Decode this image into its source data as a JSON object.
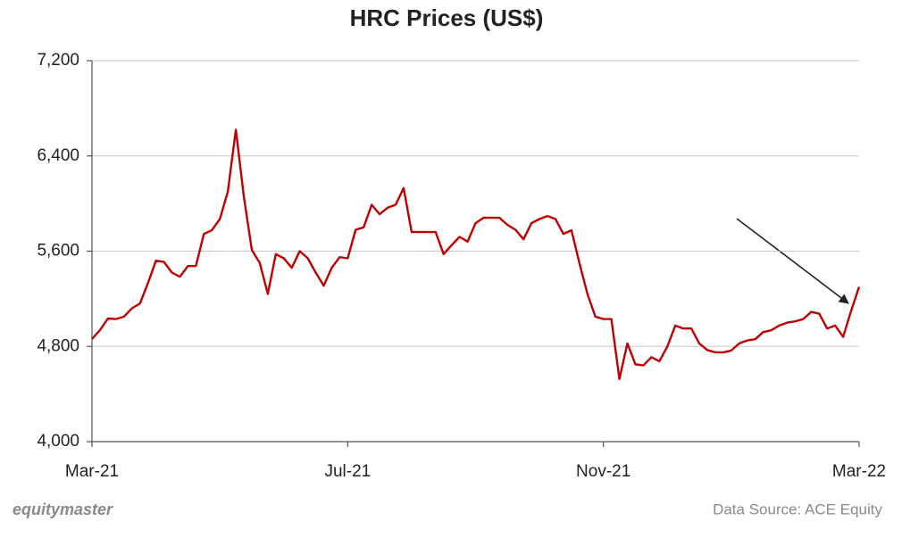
{
  "chart_data": {
    "type": "line",
    "title": "HRC Prices (US$)",
    "categories": [
      "Mar-21",
      null,
      null,
      null,
      null,
      null,
      null,
      null,
      null,
      null,
      null,
      null,
      null,
      null,
      null,
      null,
      null,
      null,
      null,
      null,
      null,
      null,
      null,
      null,
      null,
      null,
      null,
      null,
      null,
      null,
      null,
      null,
      "Jul-21",
      null,
      null,
      null,
      null,
      null,
      null,
      null,
      null,
      null,
      null,
      null,
      null,
      null,
      null,
      null,
      null,
      null,
      null,
      null,
      null,
      null,
      null,
      null,
      null,
      null,
      null,
      null,
      null,
      null,
      null,
      null,
      "Nov-21",
      null,
      null,
      null,
      null,
      null,
      null,
      null,
      null,
      null,
      null,
      null,
      null,
      null,
      null,
      null,
      null,
      null,
      null,
      null,
      null,
      null,
      null,
      null,
      null,
      null,
      null,
      null,
      null,
      null,
      null,
      null,
      "Mar-22"
    ],
    "values": [
      4862,
      4937,
      5034,
      5030,
      5050,
      5120,
      5160,
      5330,
      5520,
      5510,
      5420,
      5385,
      5475,
      5475,
      5745,
      5775,
      5870,
      6100,
      6620,
      6060,
      5610,
      5500,
      5240,
      5575,
      5540,
      5460,
      5600,
      5540,
      5420,
      5310,
      5460,
      5550,
      5540,
      5780,
      5800,
      5990,
      5910,
      5965,
      5990,
      6130,
      5760,
      5760,
      5760,
      5760,
      5575,
      5650,
      5720,
      5680,
      5835,
      5880,
      5880,
      5880,
      5820,
      5780,
      5700,
      5835,
      5870,
      5895,
      5870,
      5745,
      5775,
      5500,
      5240,
      5050,
      5030,
      5030,
      4525,
      4825,
      4650,
      4640,
      4710,
      4675,
      4800,
      4975,
      4950,
      4950,
      4825,
      4770,
      4750,
      4750,
      4765,
      4825,
      4850,
      4860,
      4920,
      4935,
      4975,
      5000,
      5010,
      5030,
      5090,
      5075,
      4950,
      4975,
      4880,
      5100,
      5300
    ],
    "color": "#c00000",
    "ylim": [
      4000,
      7200
    ],
    "yticks": [
      {
        "value": 4000,
        "label": "4,000"
      },
      {
        "value": 4800,
        "label": "4,800"
      },
      {
        "value": 5600,
        "label": "5,600"
      },
      {
        "value": 6400,
        "label": "6,400"
      },
      {
        "value": 7200,
        "label": "7,200"
      }
    ],
    "grid": true
  },
  "footer": {
    "logo": "equitymaster",
    "source": "Data Source: ACE Equity"
  }
}
